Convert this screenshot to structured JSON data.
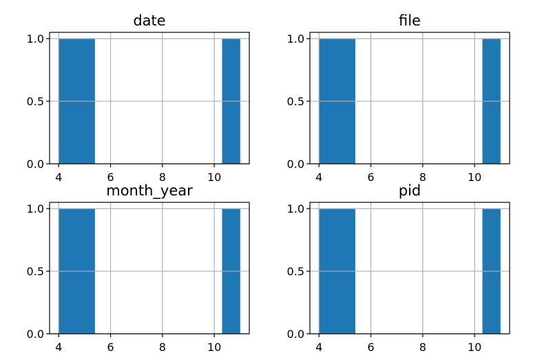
{
  "chart_data": [
    {
      "type": "bar",
      "title": "date",
      "bins": [
        [
          4.0,
          5.4
        ],
        [
          10.3,
          11.0
        ]
      ],
      "values": [
        1.0,
        1.0
      ],
      "xlim": [
        3.65,
        11.35
      ],
      "ylim": [
        0,
        1.05
      ],
      "xticks": [
        "4",
        "6",
        "8",
        "10"
      ],
      "yticks": [
        "0.0",
        "0.5",
        "1.0"
      ],
      "grid": true,
      "color": "#1f77b4"
    },
    {
      "type": "bar",
      "title": "file",
      "bins": [
        [
          4.0,
          5.4
        ],
        [
          10.3,
          11.0
        ]
      ],
      "values": [
        1.0,
        1.0
      ],
      "xlim": [
        3.65,
        11.35
      ],
      "ylim": [
        0,
        1.05
      ],
      "xticks": [
        "4",
        "6",
        "8",
        "10"
      ],
      "yticks": [
        "0.0",
        "0.5",
        "1.0"
      ],
      "grid": true,
      "color": "#1f77b4"
    },
    {
      "type": "bar",
      "title": "month_year",
      "bins": [
        [
          4.0,
          5.4
        ],
        [
          10.3,
          11.0
        ]
      ],
      "values": [
        1.0,
        1.0
      ],
      "xlim": [
        3.65,
        11.35
      ],
      "ylim": [
        0,
        1.05
      ],
      "xticks": [
        "4",
        "6",
        "8",
        "10"
      ],
      "yticks": [
        "0.0",
        "0.5",
        "1.0"
      ],
      "grid": true,
      "color": "#1f77b4"
    },
    {
      "type": "bar",
      "title": "pid",
      "bins": [
        [
          4.0,
          5.4
        ],
        [
          10.3,
          11.0
        ]
      ],
      "values": [
        1.0,
        1.0
      ],
      "xlim": [
        3.65,
        11.35
      ],
      "ylim": [
        0,
        1.05
      ],
      "xticks": [
        "4",
        "6",
        "8",
        "10"
      ],
      "yticks": [
        "0.0",
        "0.5",
        "1.0"
      ],
      "grid": true,
      "color": "#1f77b4"
    }
  ]
}
